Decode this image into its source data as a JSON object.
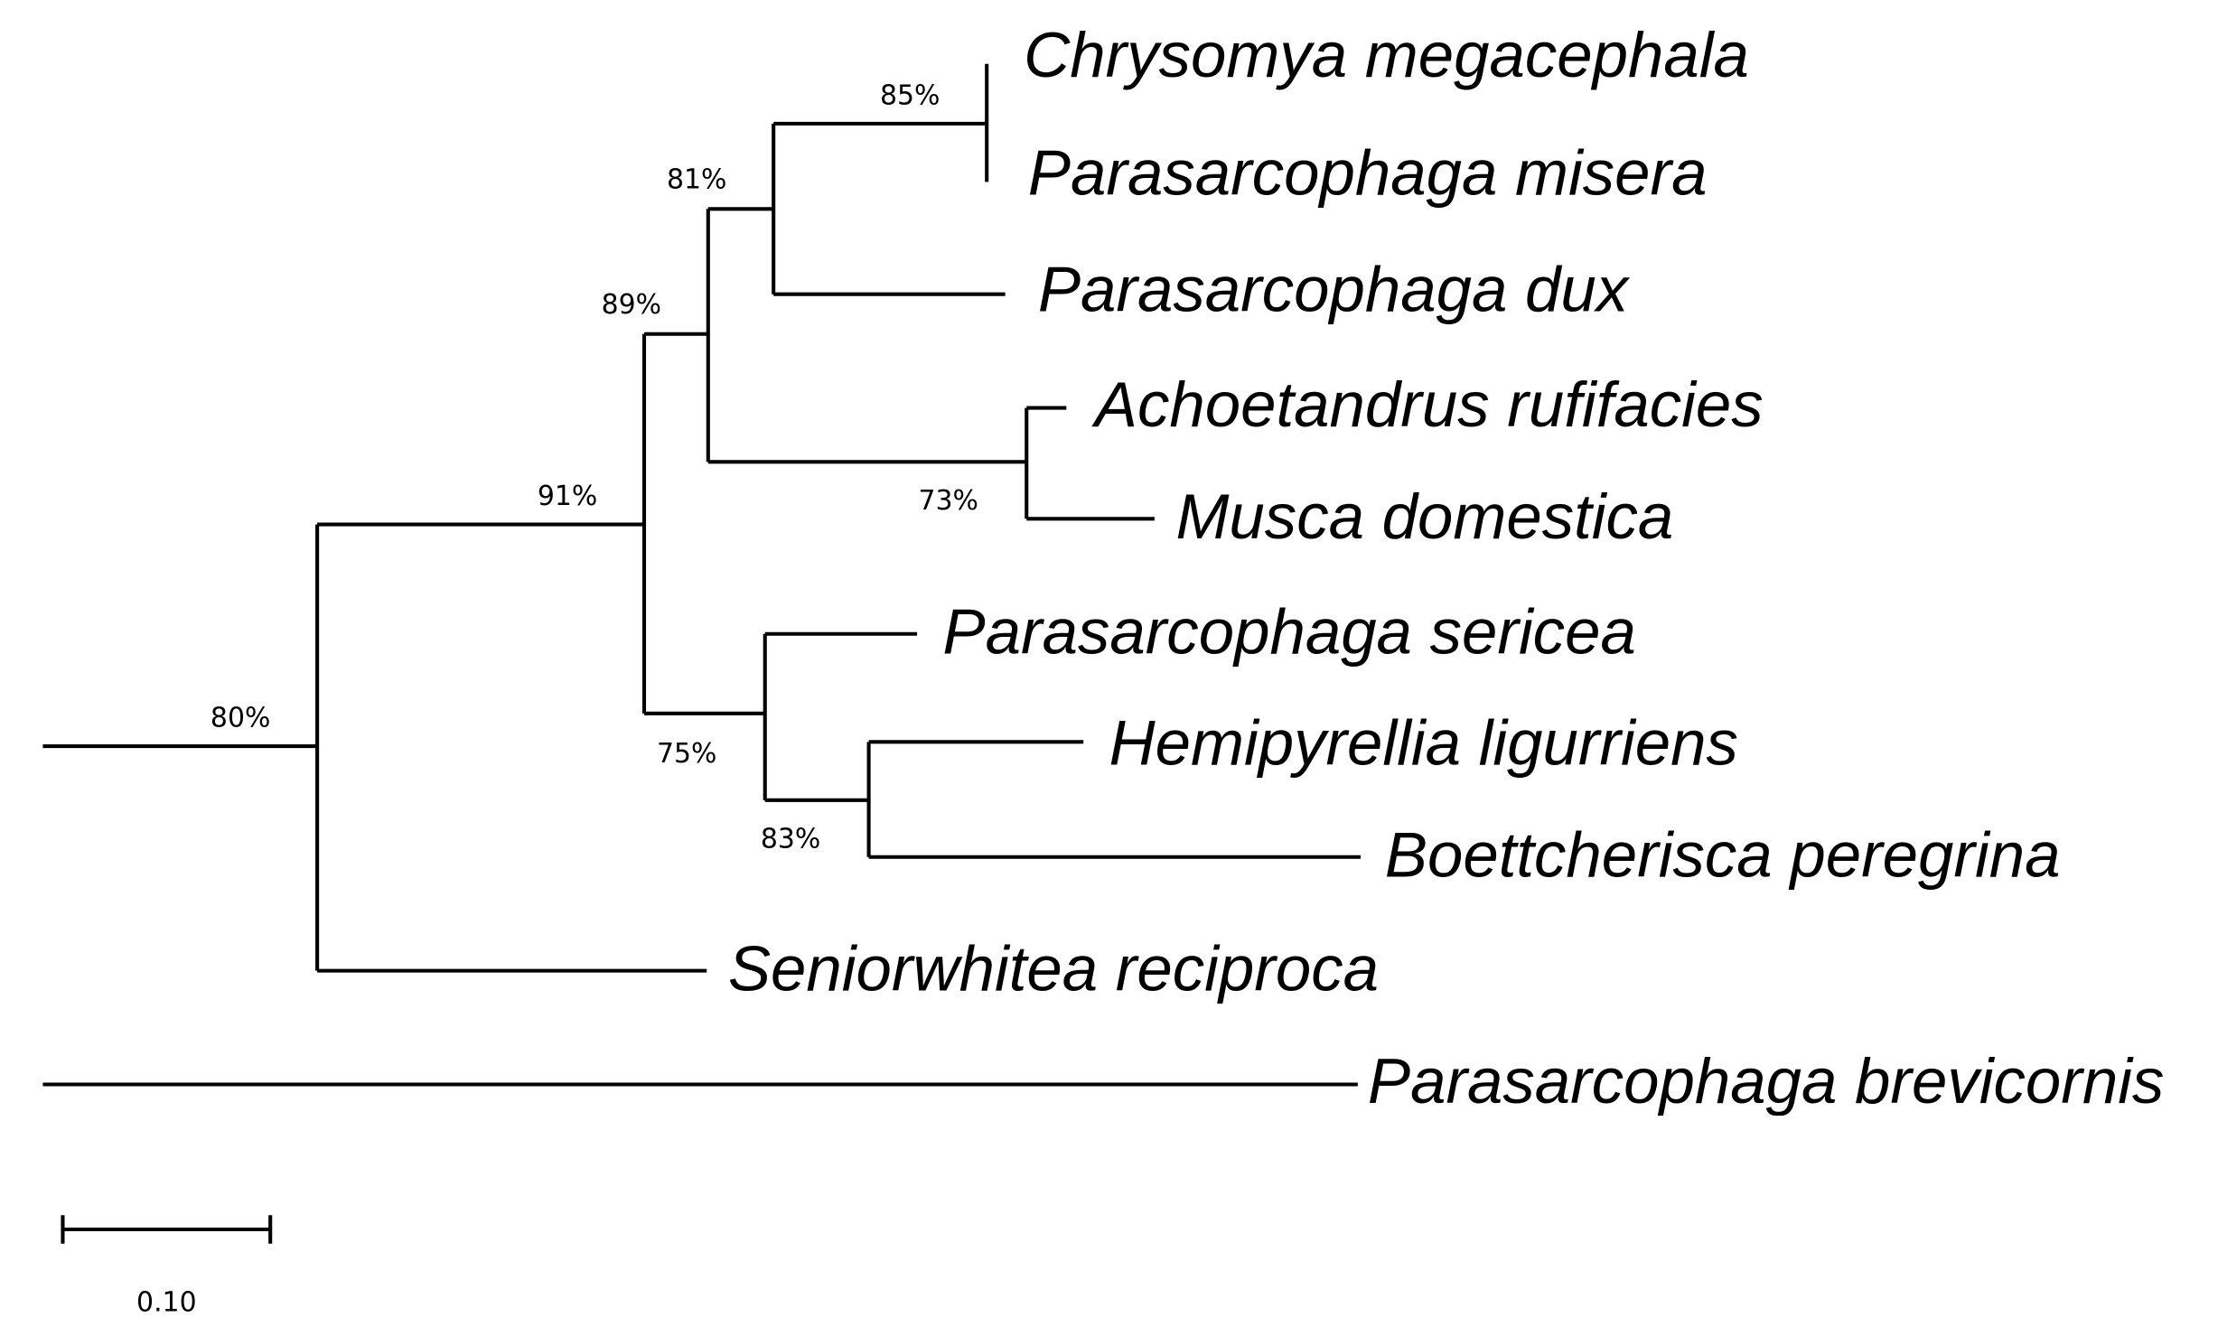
{
  "leaves": [
    "Chrysomya megacephala",
    "Parasarcophaga misera",
    "Parasarcophaga dux",
    "Achoetandrus rufifacies",
    "Musca domestica",
    "Parasarcophaga sericea",
    "Hemipyrellia ligurriens",
    "Boettcherisca peregrina",
    "Seniorwhitea reciproca",
    "Parasarcophaga brevicornis"
  ],
  "bootstrap": [
    "85%",
    "81%",
    "89%",
    "91%",
    "80%",
    "73%",
    "75%",
    "83%"
  ],
  "scale_bar": {
    "label": "0.10"
  }
}
